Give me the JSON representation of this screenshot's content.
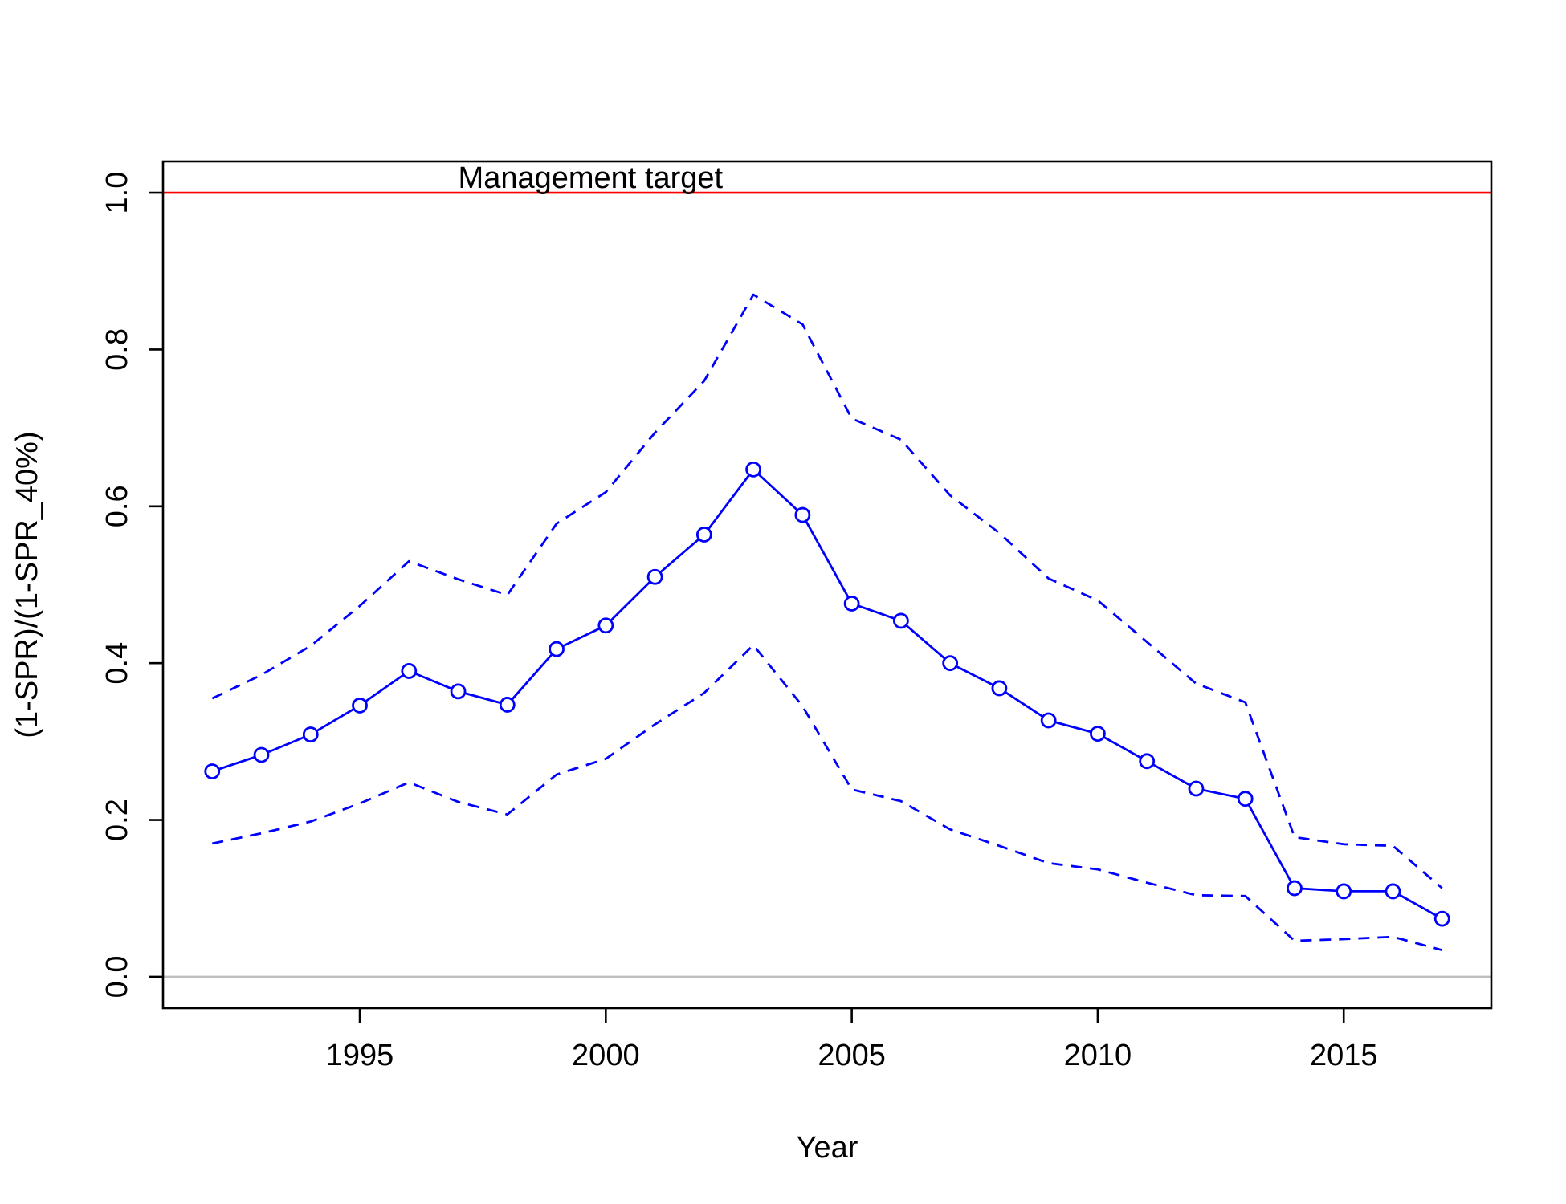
{
  "chart_data": {
    "type": "line",
    "title": "",
    "xlabel": "Year",
    "ylabel": "(1-SPR)/(1-SPR_40%)",
    "xlim": [
      1991,
      2018
    ],
    "ylim": [
      -0.04,
      1.04
    ],
    "x_ticks": [
      1995,
      2000,
      2005,
      2010,
      2015
    ],
    "x_tick_labels": [
      "1995",
      "2000",
      "2005",
      "2010",
      "2015"
    ],
    "y_ticks": [
      0.0,
      0.2,
      0.4,
      0.6,
      0.8,
      1.0
    ],
    "y_tick_labels": [
      "0.0",
      "0.2",
      "0.4",
      "0.6",
      "0.8",
      "1.0"
    ],
    "grid": false,
    "x": [
      1992,
      1993,
      1994,
      1995,
      1996,
      1997,
      1998,
      1999,
      2000,
      2001,
      2002,
      2003,
      2004,
      2005,
      2006,
      2007,
      2008,
      2009,
      2010,
      2011,
      2012,
      2013,
      2014,
      2015,
      2016,
      2017
    ],
    "series": [
      {
        "role": "estimate",
        "values": [
          0.262,
          0.283,
          0.309,
          0.346,
          0.39,
          0.364,
          0.347,
          0.418,
          0.448,
          0.51,
          0.564,
          0.647,
          0.589,
          0.476,
          0.454,
          0.4,
          0.368,
          0.327,
          0.31,
          0.275,
          0.24,
          0.227,
          0.113,
          0.109,
          0.109,
          0.074
        ],
        "color": "#0000ff",
        "line": "solid",
        "markers": "open-circle"
      },
      {
        "role": "upper-interval",
        "values": [
          0.355,
          0.385,
          0.422,
          0.473,
          0.53,
          0.507,
          0.487,
          0.578,
          0.618,
          0.694,
          0.76,
          0.87,
          0.832,
          0.712,
          0.685,
          0.614,
          0.566,
          0.508,
          0.48,
          0.427,
          0.374,
          0.35,
          0.178,
          0.169,
          0.167,
          0.113
        ],
        "color": "#0000ff",
        "line": "dashed"
      },
      {
        "role": "lower-interval",
        "values": [
          0.17,
          0.183,
          0.198,
          0.221,
          0.248,
          0.223,
          0.207,
          0.258,
          0.278,
          0.322,
          0.362,
          0.423,
          0.345,
          0.239,
          0.224,
          0.188,
          0.167,
          0.145,
          0.137,
          0.12,
          0.104,
          0.103,
          0.046,
          0.048,
          0.051,
          0.034
        ],
        "color": "#0000ff",
        "line": "dashed"
      }
    ],
    "reference_lines": [
      {
        "y": 1.0,
        "color": "#ff0000",
        "label": "Management target"
      },
      {
        "y": 0.0,
        "color": "#bebebe"
      }
    ],
    "annotations": [
      {
        "text": "Management target",
        "x": 1997.0,
        "y": 1.0
      }
    ]
  }
}
